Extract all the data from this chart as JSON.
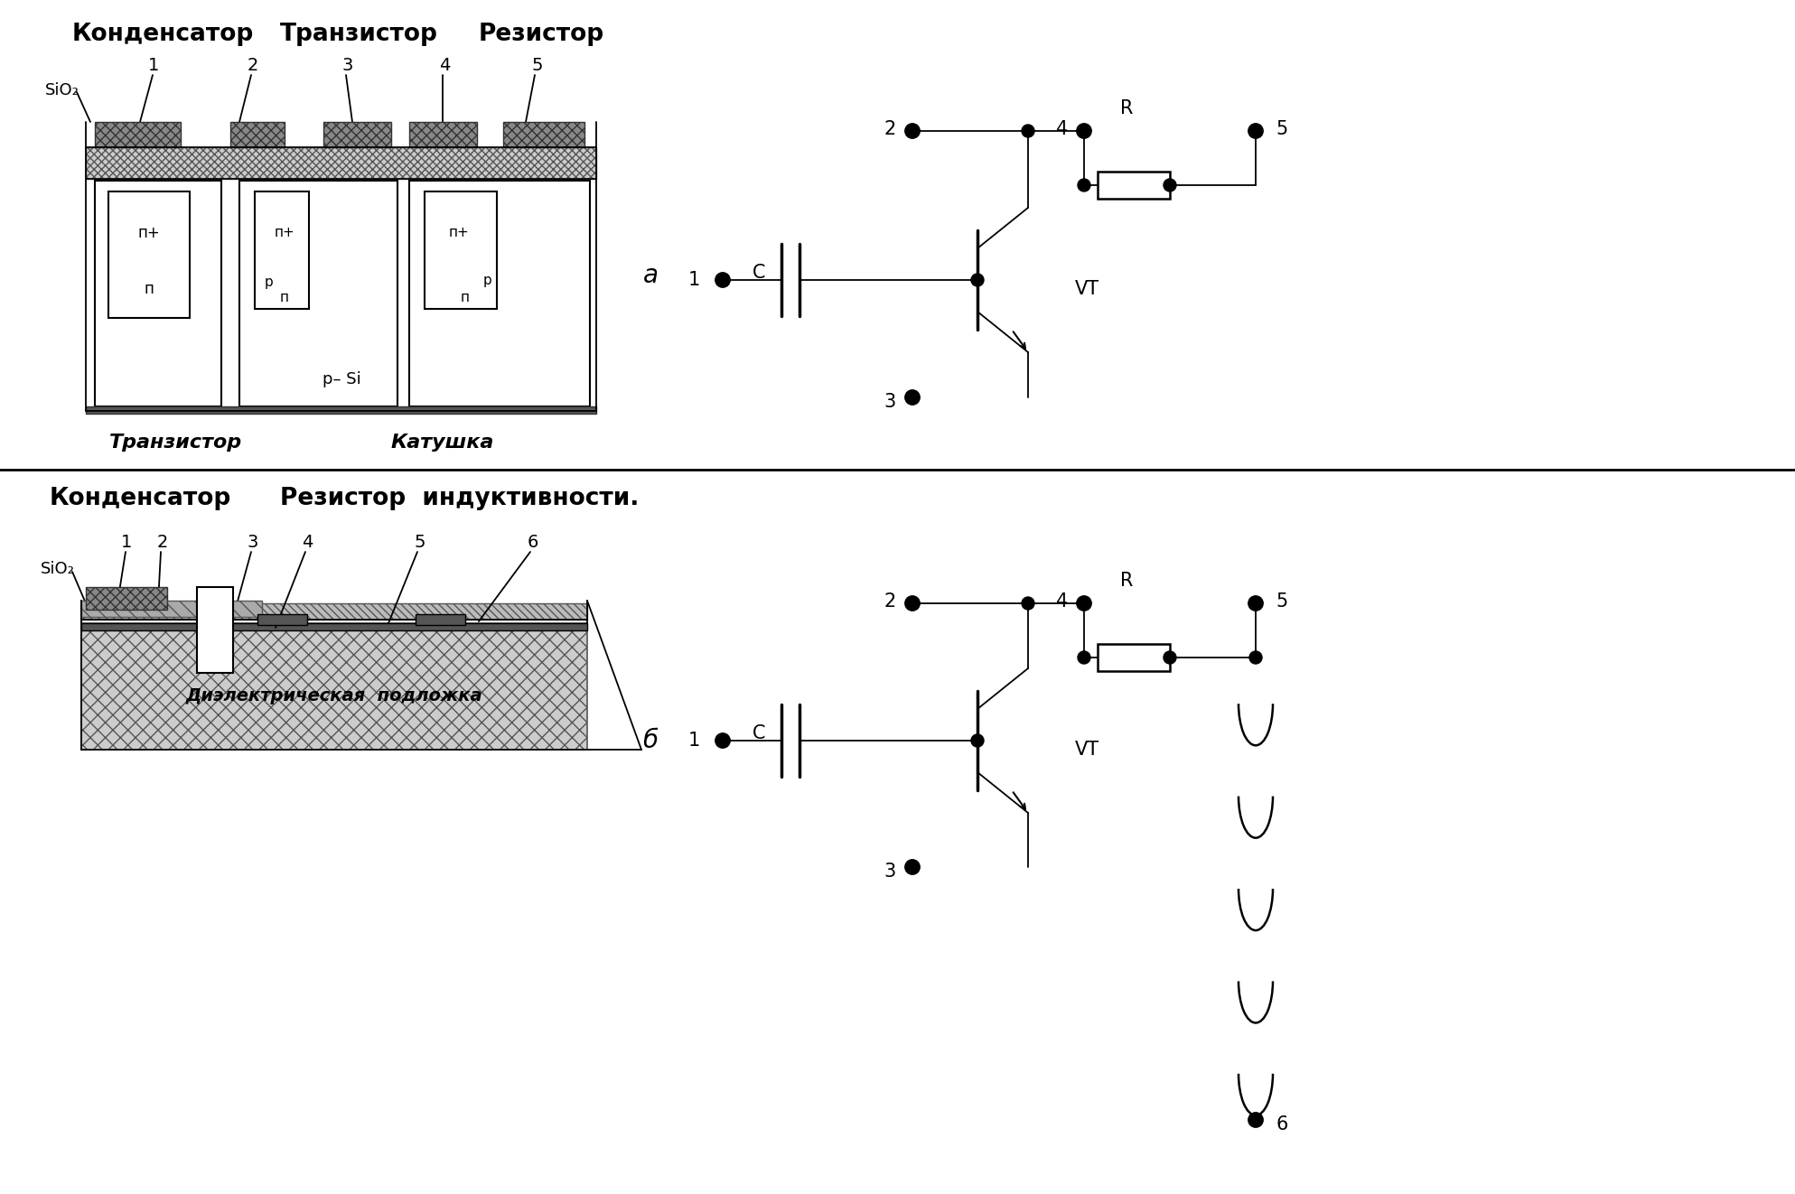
{
  "bg_color": "#ffffff",
  "top_header": [
    "Конденсатор",
    "Транзистор",
    "Резистор"
  ],
  "mid_labels": [
    "Транзистор",
    "Катушка"
  ],
  "bot_header1": "Конденсатор",
  "bot_header2": "Резистор  индуктивности.",
  "label_a": "а",
  "label_b": "б",
  "sio2_label": "SiO₂",
  "psi_label": "р– Si",
  "diel_label": "Диэлектрическая  подложка",
  "c_label": "C",
  "vt_label": "VT",
  "r_label": "R"
}
